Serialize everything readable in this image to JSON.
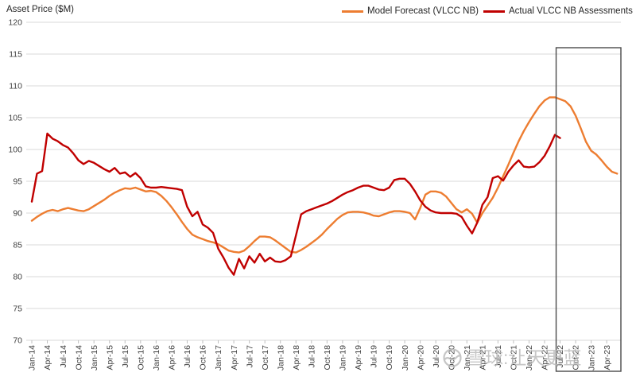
{
  "y_axis_title": "Asset Price ($M)",
  "watermark": {
    "logo": "xueqiu-snowball-logo",
    "text": "雪球:让天更蓝"
  },
  "colors": {
    "model_forecast": "#ED7D31",
    "actual_assessments": "#C00000",
    "gridline": "#D9D9D9",
    "axis_text": "#404040",
    "highlight_box_border": "#4a4a4a",
    "background": "#FFFFFF"
  },
  "chart_data": {
    "type": "line",
    "title": "",
    "xlabel": "",
    "ylabel": "Asset Price ($M)",
    "ylim": [
      70,
      120
    ],
    "ytick_step": 5,
    "grid": true,
    "legend_position": "top-center",
    "x_frequency": "monthly",
    "x_start": "Jan-14",
    "x_tick_labels": [
      "Jan-14",
      "Apr-14",
      "Jul-14",
      "Oct-14",
      "Jan-15",
      "Apr-15",
      "Jul-15",
      "Oct-15",
      "Jan-16",
      "Apr-16",
      "Jul-16",
      "Oct-16",
      "Jan-17",
      "Apr-17",
      "Jul-17",
      "Oct-17",
      "Jan-18",
      "Apr-18",
      "Jul-18",
      "Oct-18",
      "Jan-19",
      "Apr-19",
      "Jul-19",
      "Oct-19",
      "Jan-20",
      "Apr-20",
      "Jul-20",
      "Oct-20",
      "Jan-21",
      "Apr-21",
      "Jul-21",
      "Oct-21",
      "Jan-22",
      "Apr-22",
      "Jul-22",
      "Oct-22",
      "Jan-23",
      "Apr-23"
    ],
    "x_tick_every_months": 3,
    "highlight_box": {
      "start_label": "Jul-22",
      "extends_to": "right edge of plot",
      "meaning": "forecast window"
    },
    "series": [
      {
        "name": "Model Forecast (VLCC NB)",
        "color": "#ED7D31",
        "start_month": "Jan-14",
        "values": [
          88.8,
          89.4,
          89.9,
          90.3,
          90.5,
          90.3,
          90.6,
          90.8,
          90.6,
          90.4,
          90.3,
          90.6,
          91.1,
          91.6,
          92.1,
          92.7,
          93.2,
          93.6,
          93.9,
          93.8,
          94.0,
          93.7,
          93.4,
          93.5,
          93.3,
          92.7,
          91.9,
          90.9,
          89.8,
          88.6,
          87.5,
          86.6,
          86.2,
          85.9,
          85.6,
          85.4,
          85.1,
          84.6,
          84.1,
          83.9,
          83.8,
          84.1,
          84.8,
          85.6,
          86.3,
          86.3,
          86.2,
          85.7,
          85.1,
          84.5,
          83.9,
          83.8,
          84.2,
          84.7,
          85.3,
          85.9,
          86.6,
          87.5,
          88.3,
          89.1,
          89.7,
          90.1,
          90.2,
          90.2,
          90.1,
          89.9,
          89.6,
          89.5,
          89.8,
          90.1,
          90.3,
          90.3,
          90.2,
          90.0,
          89.0,
          90.8,
          92.9,
          93.4,
          93.4,
          93.2,
          92.6,
          91.6,
          90.6,
          90.1,
          90.6,
          89.9,
          88.5,
          90.0,
          91.2,
          92.4,
          94.0,
          95.8,
          97.6,
          99.5,
          101.3,
          102.9,
          104.3,
          105.6,
          106.8,
          107.7,
          108.2,
          108.2,
          107.9,
          107.6,
          106.8,
          105.3,
          103.3,
          101.2,
          99.8,
          99.2,
          98.3,
          97.3,
          96.5,
          96.2
        ]
      },
      {
        "name": "Actual VLCC NB Assessments",
        "color": "#C00000",
        "start_month": "Jan-14",
        "values": [
          91.8,
          96.2,
          96.6,
          102.5,
          101.7,
          101.3,
          100.7,
          100.3,
          99.4,
          98.3,
          97.7,
          98.2,
          97.9,
          97.4,
          96.9,
          96.5,
          97.1,
          96.2,
          96.4,
          95.7,
          96.3,
          95.5,
          94.2,
          94.0,
          94.0,
          94.1,
          94.0,
          93.9,
          93.8,
          93.6,
          91.0,
          89.5,
          90.2,
          88.2,
          87.7,
          86.9,
          84.4,
          83.0,
          81.4,
          80.3,
          82.8,
          81.3,
          83.2,
          82.2,
          83.6,
          82.4,
          83.0,
          82.4,
          82.3,
          82.6,
          83.2,
          86.5,
          89.8,
          90.3,
          90.6,
          90.9,
          91.2,
          91.5,
          91.9,
          92.4,
          92.9,
          93.3,
          93.6,
          94.0,
          94.3,
          94.3,
          94.0,
          93.7,
          93.6,
          94.0,
          95.2,
          95.4,
          95.4,
          94.6,
          93.4,
          92.0,
          91.0,
          90.4,
          90.1,
          90.0,
          90.0,
          90.0,
          89.9,
          89.4,
          88.0,
          86.8,
          88.5,
          91.3,
          92.5,
          95.5,
          95.8,
          95.1,
          96.5,
          97.5,
          98.3,
          97.3,
          97.2,
          97.3,
          98.0,
          99.0,
          100.5,
          102.3,
          101.8
        ]
      }
    ]
  }
}
